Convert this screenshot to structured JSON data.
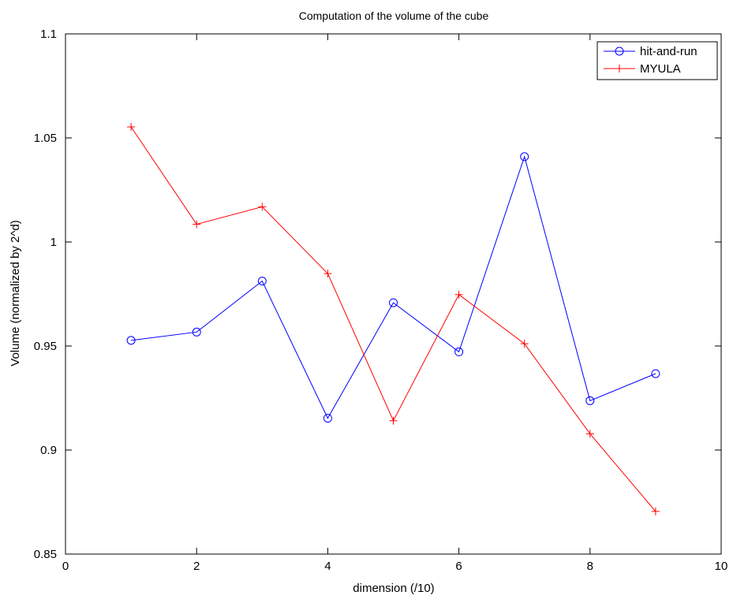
{
  "chart_data": {
    "type": "line",
    "title": "Computation of the volume of the cube",
    "xlabel": "dimension (/10)",
    "ylabel": "Volume (normalized by 2^d)",
    "xlim": [
      0,
      10
    ],
    "ylim": [
      0.85,
      1.1
    ],
    "xticks": [
      0,
      2,
      4,
      6,
      8,
      10
    ],
    "xtick_labels": [
      "0",
      "2",
      "4",
      "6",
      "8",
      "10"
    ],
    "yticks": [
      0.85,
      0.9,
      0.95,
      1.0,
      1.05,
      1.1
    ],
    "ytick_labels": [
      "0.85",
      "0.9",
      "0.95",
      "1",
      "1.05",
      "1.1"
    ],
    "grid": false,
    "legend_position": "top-right",
    "x": [
      1,
      2,
      3,
      4,
      5,
      6,
      7,
      8,
      9
    ],
    "series": [
      {
        "name": "hit-and-run",
        "color": "#0000ff",
        "marker": "circle",
        "values": [
          0.9527,
          0.9567,
          0.9812,
          0.9153,
          0.9708,
          0.9472,
          1.041,
          0.9237,
          0.9367
        ]
      },
      {
        "name": "MYULA",
        "color": "#ff0000",
        "marker": "plus",
        "values": [
          1.0553,
          1.0085,
          1.0169,
          0.9848,
          0.9141,
          0.9747,
          0.9511,
          0.9078,
          0.8705
        ]
      }
    ]
  }
}
